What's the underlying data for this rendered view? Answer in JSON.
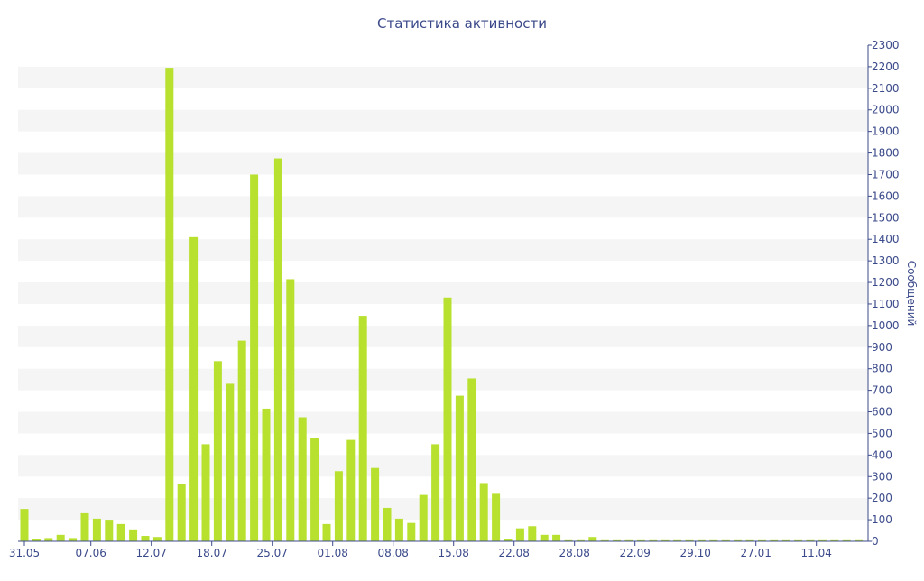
{
  "chart_data": {
    "type": "bar",
    "title": "Статистика активности",
    "xlabel": "",
    "ylabel": "Сообщений",
    "ylim": [
      0,
      2300
    ],
    "ytick_step": 100,
    "grid": "alternating horizontal bands",
    "legend": "none",
    "bar_color": "#b8e02e",
    "band_color": "#f5f5f5",
    "text_color": "#3b4a8a",
    "axis_color": "#3b4a8a",
    "x_tick_labels": [
      {
        "label": "31.05",
        "index": 0
      },
      {
        "label": "07.06",
        "index": 5.5
      },
      {
        "label": "12.07",
        "index": 10.5
      },
      {
        "label": "18.07",
        "index": 15.5
      },
      {
        "label": "25.07",
        "index": 20.5
      },
      {
        "label": "01.08",
        "index": 25.5
      },
      {
        "label": "08.08",
        "index": 30.5
      },
      {
        "label": "15.08",
        "index": 35.5
      },
      {
        "label": "22.08",
        "index": 40.5
      },
      {
        "label": "28.08",
        "index": 45.5
      },
      {
        "label": "22.09",
        "index": 50.5
      },
      {
        "label": "29.10",
        "index": 55.5
      },
      {
        "label": "27.01",
        "index": 60.5
      },
      {
        "label": "11.04",
        "index": 65.5
      }
    ],
    "values": [
      150,
      10,
      15,
      30,
      15,
      130,
      105,
      100,
      80,
      55,
      25,
      20,
      2195,
      265,
      1410,
      450,
      835,
      730,
      930,
      1700,
      615,
      1775,
      1215,
      575,
      480,
      80,
      325,
      470,
      1045,
      340,
      155,
      105,
      85,
      215,
      450,
      1130,
      675,
      755,
      270,
      220,
      10,
      60,
      70,
      30,
      30,
      5,
      5,
      20,
      5,
      5,
      5,
      5,
      5,
      5,
      5,
      5,
      5,
      5,
      5,
      5,
      5,
      5,
      5,
      5,
      5,
      5,
      5,
      5,
      5,
      5
    ]
  }
}
